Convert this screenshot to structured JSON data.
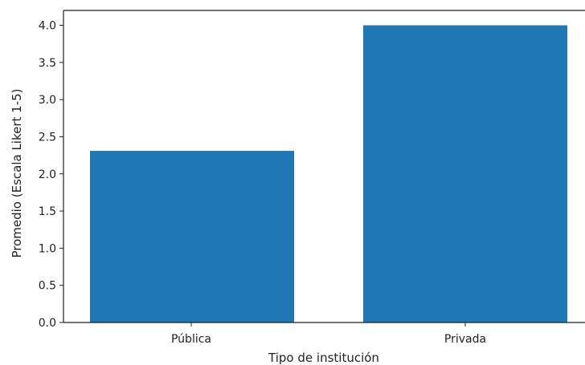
{
  "chart_data": {
    "type": "bar",
    "title": "",
    "xlabel": "Tipo de institución",
    "ylabel": "Promedio (Escala Likert 1-5)",
    "categories": [
      "Pública",
      "Privada"
    ],
    "values": [
      2.31,
      4.0
    ],
    "ylim": [
      0,
      4.2
    ],
    "yticks": [
      "0.0",
      "0.5",
      "1.0",
      "1.5",
      "2.0",
      "2.5",
      "3.0",
      "3.5",
      "4.0"
    ],
    "bar_color": "#1f77b4",
    "grid": false,
    "legend": "none"
  }
}
